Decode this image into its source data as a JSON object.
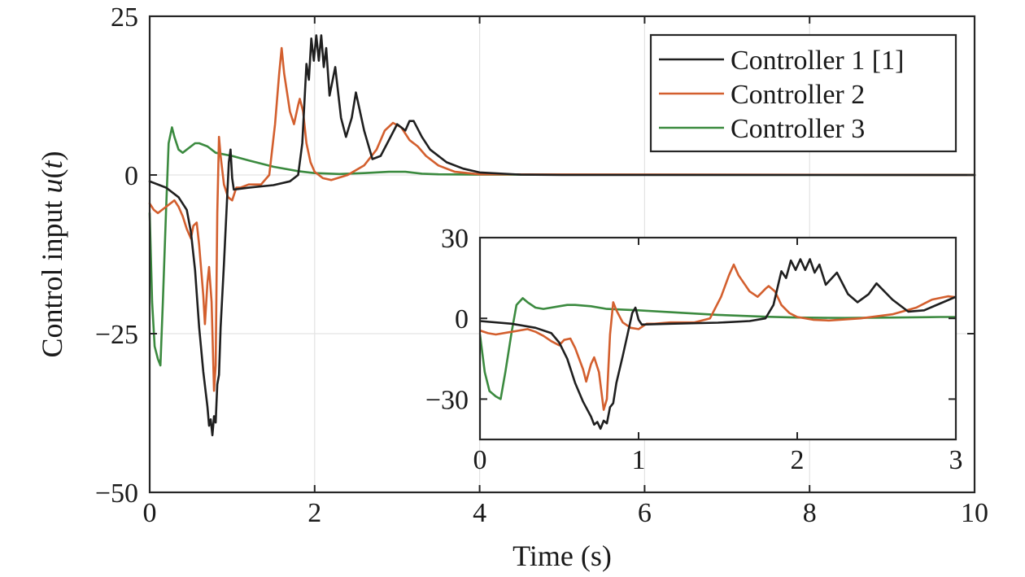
{
  "chart_data": [
    {
      "type": "line",
      "role": "main",
      "xlabel": "Time (s)",
      "ylabel_prefix": "Control input ",
      "ylabel_var": "u",
      "ylabel_paren_open": "(",
      "ylabel_arg": "t",
      "ylabel_paren_close": ")",
      "xlim": [
        0,
        10
      ],
      "ylim": [
        -50,
        25
      ],
      "xticks": [
        0,
        2,
        4,
        6,
        8,
        10
      ],
      "yticks": [
        -50,
        -25,
        0,
        25
      ],
      "xtick_labels": [
        "0",
        "2",
        "4",
        "6",
        "8",
        "10"
      ],
      "ytick_labels": [
        "−50",
        "−25",
        "0",
        "25"
      ],
      "grid": true,
      "legend_position": "top-right",
      "series": [
        {
          "name": "Controller 1 [1]",
          "color": "#1f1f1f",
          "points": [
            [
              0,
              -1
            ],
            [
              0.2,
              -2
            ],
            [
              0.35,
              -3.5
            ],
            [
              0.45,
              -5.5
            ],
            [
              0.5,
              -9
            ],
            [
              0.55,
              -15
            ],
            [
              0.6,
              -24
            ],
            [
              0.65,
              -31
            ],
            [
              0.7,
              -36.5
            ],
            [
              0.72,
              -39.5
            ],
            [
              0.74,
              -38.5
            ],
            [
              0.76,
              -41
            ],
            [
              0.78,
              -38
            ],
            [
              0.8,
              -39
            ],
            [
              0.82,
              -33
            ],
            [
              0.84,
              -31.5
            ],
            [
              0.86,
              -24
            ],
            [
              0.9,
              -14
            ],
            [
              0.93,
              -6
            ],
            [
              0.96,
              2
            ],
            [
              0.98,
              4
            ],
            [
              1.0,
              -0.5
            ],
            [
              1.02,
              -2.3
            ],
            [
              1.2,
              -2
            ],
            [
              1.5,
              -1.6
            ],
            [
              1.7,
              -1
            ],
            [
              1.8,
              0
            ],
            [
              1.85,
              5
            ],
            [
              1.9,
              17.5
            ],
            [
              1.93,
              15
            ],
            [
              1.96,
              21.5
            ],
            [
              1.99,
              18
            ],
            [
              2.02,
              22
            ],
            [
              2.05,
              18
            ],
            [
              2.08,
              22
            ],
            [
              2.11,
              17
            ],
            [
              2.14,
              20
            ],
            [
              2.18,
              12.5
            ],
            [
              2.25,
              17
            ],
            [
              2.32,
              9
            ],
            [
              2.38,
              6
            ],
            [
              2.45,
              9
            ],
            [
              2.5,
              13
            ],
            [
              2.6,
              7
            ],
            [
              2.7,
              2.5
            ],
            [
              2.8,
              3
            ],
            [
              2.9,
              5.5
            ],
            [
              3.0,
              8
            ],
            [
              3.1,
              7
            ],
            [
              3.15,
              8.5
            ],
            [
              3.2,
              8.5
            ],
            [
              3.3,
              6
            ],
            [
              3.4,
              4
            ],
            [
              3.6,
              2
            ],
            [
              3.8,
              1
            ],
            [
              4.0,
              0.4
            ],
            [
              4.5,
              0.05
            ],
            [
              5.0,
              0
            ],
            [
              10,
              0
            ]
          ]
        },
        {
          "name": "Controller 2",
          "color": "#d35f2e",
          "points": [
            [
              0,
              -4.5
            ],
            [
              0.05,
              -5.5
            ],
            [
              0.1,
              -6
            ],
            [
              0.2,
              -5
            ],
            [
              0.3,
              -4
            ],
            [
              0.35,
              -5
            ],
            [
              0.4,
              -6.5
            ],
            [
              0.45,
              -8.5
            ],
            [
              0.5,
              -10
            ],
            [
              0.53,
              -8
            ],
            [
              0.57,
              -7.5
            ],
            [
              0.6,
              -11
            ],
            [
              0.65,
              -19
            ],
            [
              0.67,
              -23.5
            ],
            [
              0.7,
              -17
            ],
            [
              0.72,
              -14.5
            ],
            [
              0.75,
              -20
            ],
            [
              0.78,
              -34
            ],
            [
              0.8,
              -30
            ],
            [
              0.82,
              -6
            ],
            [
              0.84,
              6
            ],
            [
              0.86,
              3
            ],
            [
              0.9,
              -1.5
            ],
            [
              0.95,
              -3.5
            ],
            [
              1.0,
              -4
            ],
            [
              1.05,
              -2
            ],
            [
              1.1,
              -2
            ],
            [
              1.2,
              -1.5
            ],
            [
              1.35,
              -1.5
            ],
            [
              1.45,
              0
            ],
            [
              1.52,
              8
            ],
            [
              1.57,
              16
            ],
            [
              1.6,
              20
            ],
            [
              1.63,
              16
            ],
            [
              1.7,
              10
            ],
            [
              1.75,
              8
            ],
            [
              1.8,
              11
            ],
            [
              1.82,
              12
            ],
            [
              1.86,
              10
            ],
            [
              1.9,
              5
            ],
            [
              1.95,
              2
            ],
            [
              2.0,
              0.5
            ],
            [
              2.1,
              -0.5
            ],
            [
              2.2,
              -0.8
            ],
            [
              2.4,
              0
            ],
            [
              2.6,
              1.5
            ],
            [
              2.75,
              4
            ],
            [
              2.85,
              7
            ],
            [
              2.95,
              8.2
            ],
            [
              3.05,
              7.5
            ],
            [
              3.15,
              5.5
            ],
            [
              3.25,
              4.5
            ],
            [
              3.35,
              3
            ],
            [
              3.5,
              1.5
            ],
            [
              3.7,
              0.5
            ],
            [
              4.0,
              0.1
            ],
            [
              10,
              0
            ]
          ]
        },
        {
          "name": "Controller 3",
          "color": "#3b8a3f",
          "points": [
            [
              0,
              -6
            ],
            [
              0.03,
              -20
            ],
            [
              0.06,
              -27
            ],
            [
              0.1,
              -29
            ],
            [
              0.13,
              -30
            ],
            [
              0.16,
              -20
            ],
            [
              0.2,
              -5
            ],
            [
              0.23,
              5
            ],
            [
              0.27,
              7.5
            ],
            [
              0.3,
              6
            ],
            [
              0.35,
              4
            ],
            [
              0.4,
              3.5
            ],
            [
              0.5,
              4.5
            ],
            [
              0.55,
              5
            ],
            [
              0.6,
              5
            ],
            [
              0.7,
              4.5
            ],
            [
              0.8,
              3.5
            ],
            [
              1.0,
              3
            ],
            [
              1.2,
              2.3
            ],
            [
              1.5,
              1.3
            ],
            [
              1.8,
              0.6
            ],
            [
              2.0,
              0.3
            ],
            [
              2.3,
              0.15
            ],
            [
              2.6,
              0.3
            ],
            [
              2.9,
              0.5
            ],
            [
              3.1,
              0.5
            ],
            [
              3.3,
              0.2
            ],
            [
              3.5,
              0.1
            ],
            [
              4.0,
              0.05
            ],
            [
              10,
              0
            ]
          ]
        }
      ]
    },
    {
      "type": "line",
      "role": "inset",
      "xlim": [
        0,
        3
      ],
      "ylim": [
        -45,
        30
      ],
      "xticks": [
        0,
        1,
        2,
        3
      ],
      "yticks": [
        -30,
        0,
        30
      ],
      "xtick_labels": [
        "0",
        "1",
        "2",
        "3"
      ],
      "ytick_labels": [
        "−30",
        "0",
        "30"
      ],
      "grid": false
    }
  ]
}
